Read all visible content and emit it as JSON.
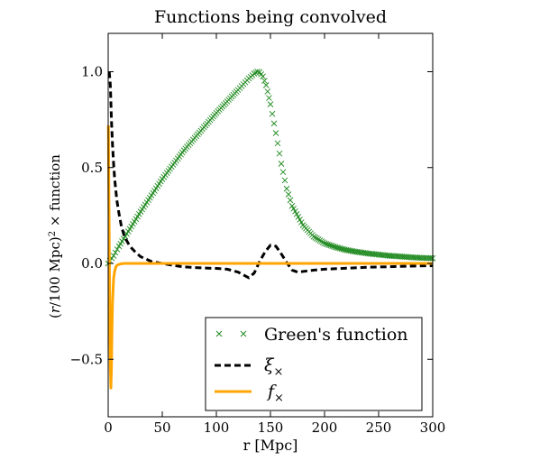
{
  "chart_data": {
    "type": "line",
    "title": "Functions being convolved",
    "xlabel": "r [Mpc]",
    "ylabel_parts": {
      "open": "(",
      "r": "r",
      "slash100": "/100  Mpc)",
      "sup": "2",
      "tail": " × function"
    },
    "xlim": [
      0,
      300
    ],
    "ylim": [
      -0.8,
      1.2
    ],
    "xticks": [
      0,
      50,
      100,
      150,
      200,
      250,
      300
    ],
    "xtick_labels": [
      "0",
      "50",
      "100",
      "150",
      "200",
      "250",
      "300"
    ],
    "yticks": [
      -0.5,
      0.0,
      0.5,
      1.0
    ],
    "ytick_labels": [
      "−0.5",
      "0.0",
      "0.5",
      "1.0"
    ],
    "grid": false,
    "legend_position": "bottom-right",
    "series": [
      {
        "name": "Green's function",
        "style": "markers-x",
        "color": "#228B22",
        "x": [
          0,
          5,
          10,
          20,
          30,
          40,
          50,
          60,
          70,
          80,
          90,
          100,
          110,
          120,
          125,
          130,
          135,
          138,
          140,
          143,
          146,
          150,
          155,
          160,
          165,
          170,
          180,
          190,
          200,
          210,
          220,
          230,
          240,
          250,
          260,
          270,
          280,
          290,
          300
        ],
        "y": [
          0.0,
          0.04,
          0.09,
          0.18,
          0.27,
          0.355,
          0.44,
          0.515,
          0.59,
          0.655,
          0.72,
          0.785,
          0.845,
          0.905,
          0.935,
          0.965,
          0.99,
          1.0,
          0.998,
          0.975,
          0.93,
          0.83,
          0.68,
          0.52,
          0.39,
          0.3,
          0.2,
          0.14,
          0.105,
          0.085,
          0.07,
          0.06,
          0.052,
          0.046,
          0.04,
          0.036,
          0.032,
          0.029,
          0.027
        ]
      },
      {
        "name": "ξ×",
        "label_symbol": "ξ",
        "label_sub": "×",
        "style": "dashed",
        "color": "#000000",
        "x": [
          1,
          2,
          3,
          4,
          5,
          6,
          8,
          10,
          12,
          15,
          20,
          25,
          30,
          40,
          50,
          60,
          70,
          80,
          90,
          100,
          110,
          120,
          125,
          130,
          135,
          140,
          145,
          150,
          155,
          160,
          165,
          170,
          175,
          180,
          190,
          200,
          220,
          240,
          260,
          280,
          300
        ],
        "y": [
          1.0,
          0.93,
          0.75,
          0.62,
          0.52,
          0.44,
          0.33,
          0.26,
          0.2,
          0.14,
          0.09,
          0.06,
          0.035,
          0.01,
          0.0,
          -0.01,
          -0.018,
          -0.022,
          -0.024,
          -0.026,
          -0.03,
          -0.045,
          -0.06,
          -0.075,
          -0.05,
          0.01,
          0.06,
          0.095,
          0.09,
          0.05,
          0.005,
          -0.035,
          -0.045,
          -0.042,
          -0.035,
          -0.03,
          -0.025,
          -0.02,
          -0.017,
          -0.014,
          -0.012
        ]
      },
      {
        "name": "f×",
        "label_symbol": "f",
        "label_sub": "×",
        "style": "solid",
        "color": "#FFA500",
        "x": [
          0.2,
          0.6,
          1,
          1.5,
          2,
          2.5,
          3,
          3.5,
          4,
          5,
          6,
          7,
          8,
          10,
          12,
          15,
          20,
          30,
          50,
          100,
          200,
          300
        ],
        "y": [
          0.72,
          0.4,
          0.1,
          -0.3,
          -0.55,
          -0.65,
          -0.55,
          -0.35,
          -0.2,
          -0.08,
          -0.04,
          -0.02,
          -0.01,
          -0.005,
          -0.002,
          0.0,
          0.0,
          0.0,
          0.0,
          0.0,
          0.0,
          0.0
        ]
      }
    ]
  }
}
